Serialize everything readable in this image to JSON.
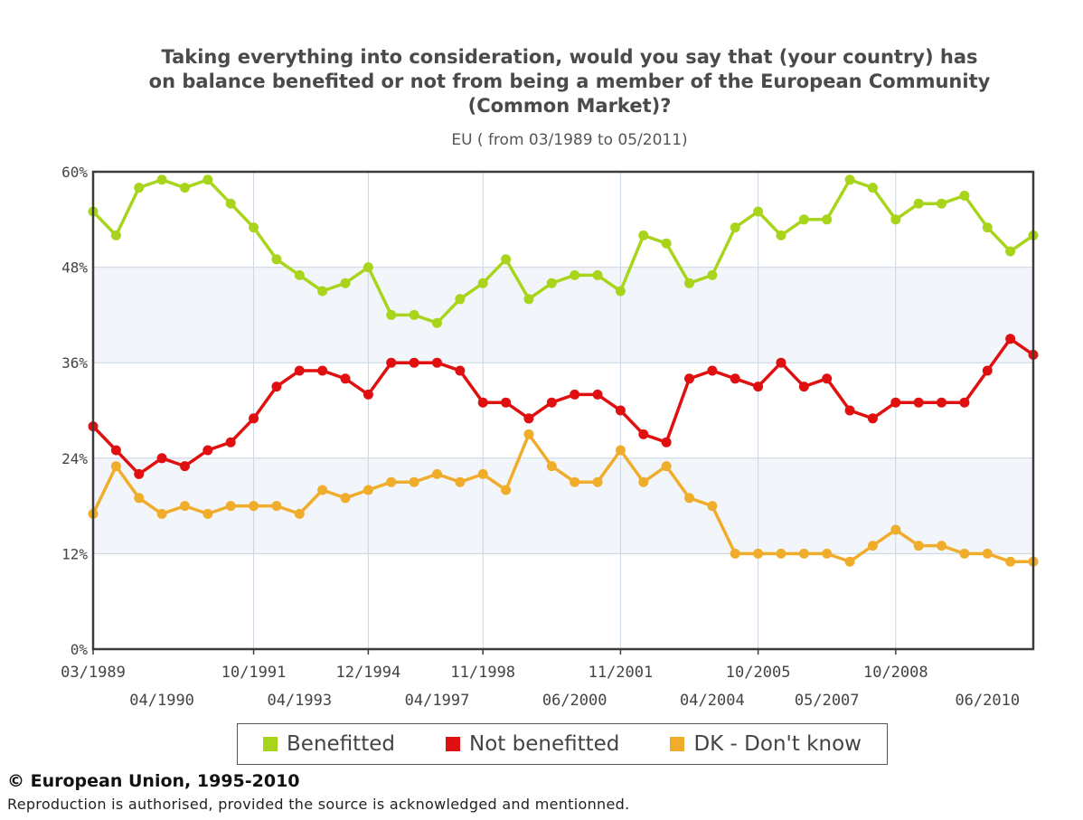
{
  "chart_data": {
    "type": "line",
    "title_lines": [
      "Taking everything into consideration, would you say that (your country) has",
      "on balance benefited or not from being a member of the European Community",
      "(Common Market)?"
    ],
    "subtitle": "EU ( from 03/1989 to 05/2011)",
    "ylim": [
      0,
      60
    ],
    "y_ticks": [
      "0%",
      "12%",
      "24%",
      "36%",
      "48%",
      "60%"
    ],
    "x_tick_labels_row1": [
      {
        "label": "03/1989",
        "index": 0
      },
      {
        "label": "10/1991",
        "index": 7
      },
      {
        "label": "12/1994",
        "index": 12
      },
      {
        "label": "11/1998",
        "index": 17
      },
      {
        "label": "11/2001",
        "index": 23
      },
      {
        "label": "10/2005",
        "index": 29
      },
      {
        "label": "10/2008",
        "index": 35
      }
    ],
    "x_tick_labels_row2": [
      {
        "label": "04/1990",
        "index": 3
      },
      {
        "label": "04/1993",
        "index": 9
      },
      {
        "label": "04/1997",
        "index": 15
      },
      {
        "label": "06/2000",
        "index": 21
      },
      {
        "label": "04/2004",
        "index": 27
      },
      {
        "label": "05/2007",
        "index": 32
      },
      {
        "label": "06/2010",
        "index": 39
      }
    ],
    "grid": true,
    "legend_position": "bottom",
    "series": [
      {
        "name": "Benefitted",
        "color": "#a8d51c",
        "values": [
          55,
          52,
          58,
          59,
          58,
          59,
          56,
          53,
          49,
          47,
          45,
          46,
          48,
          42,
          42,
          41,
          44,
          46,
          49,
          44,
          46,
          47,
          47,
          45,
          52,
          51,
          46,
          47,
          53,
          55,
          52,
          54,
          54,
          59,
          58,
          54,
          56,
          56,
          57,
          53,
          50,
          52
        ]
      },
      {
        "name": "Not benefitted",
        "color": "#e01010",
        "values": [
          28,
          25,
          22,
          24,
          23,
          25,
          26,
          29,
          33,
          35,
          35,
          34,
          32,
          36,
          36,
          36,
          35,
          31,
          31,
          29,
          31,
          32,
          32,
          30,
          27,
          26,
          34,
          35,
          34,
          33,
          36,
          33,
          34,
          30,
          29,
          31,
          31,
          31,
          31,
          35,
          39,
          37
        ]
      },
      {
        "name": "DK - Don't know",
        "color": "#f0ad2c",
        "values": [
          17,
          23,
          19,
          17,
          18,
          17,
          18,
          18,
          18,
          17,
          20,
          19,
          20,
          21,
          21,
          22,
          21,
          22,
          20,
          27,
          23,
          21,
          21,
          25,
          21,
          23,
          19,
          18,
          12,
          12,
          12,
          12,
          12,
          11,
          13,
          15,
          13,
          13,
          12,
          12,
          11,
          11
        ]
      }
    ]
  },
  "footer": {
    "copyright": "© European Union, 1995-2010",
    "reproduction": "Reproduction is authorised, provided the source is acknowledged and mentionned."
  }
}
